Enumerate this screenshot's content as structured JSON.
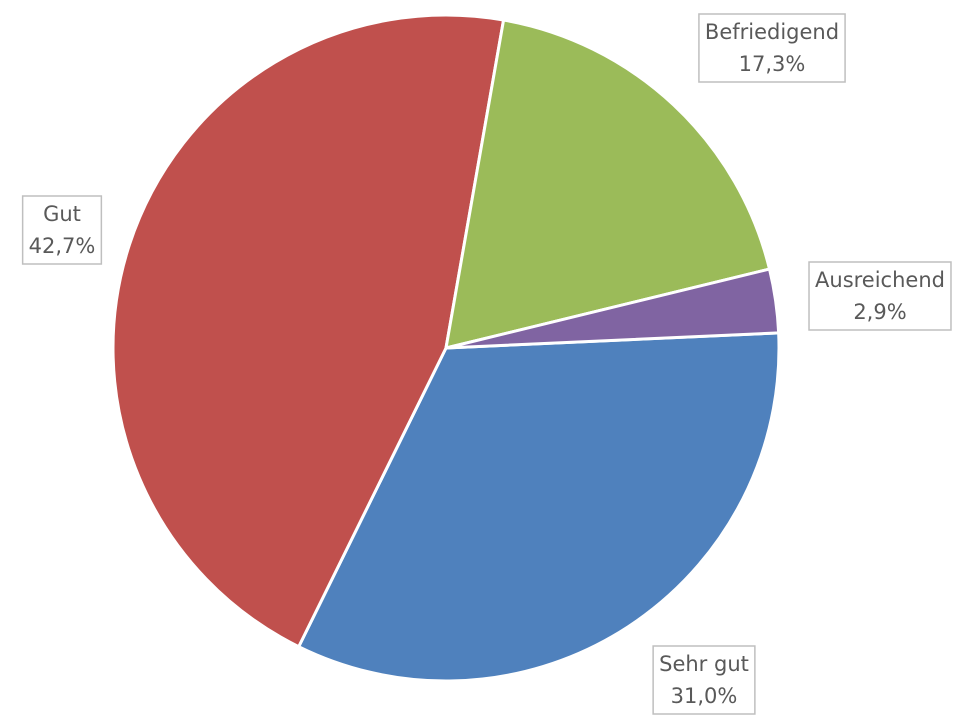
{
  "chart_data": {
    "type": "pie",
    "categories": [
      "Sehr gut",
      "Gut",
      "Befriedigend",
      "Ausreichend"
    ],
    "values": [
      31.0,
      42.7,
      17.3,
      2.9
    ],
    "value_labels": [
      "31,0%",
      "42,7%",
      "17,3%",
      "2,9%"
    ],
    "colors": [
      "#4f81bd",
      "#c0504d",
      "#9bbb59",
      "#8064a2"
    ]
  }
}
